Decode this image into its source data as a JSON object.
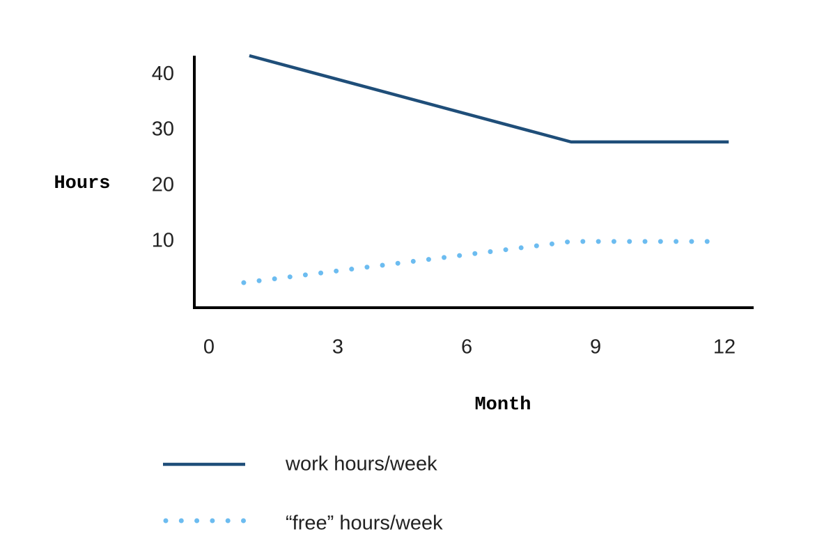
{
  "chart_data": {
    "type": "line",
    "xlabel": "Month",
    "ylabel": "Hours",
    "xlim": [
      -0.34,
      12.68
    ],
    "ylim": [
      -1.9,
      43.4
    ],
    "xticks": [
      0,
      3,
      6,
      9,
      12
    ],
    "yticks": [
      10,
      20,
      30,
      40
    ],
    "grid": false,
    "series": [
      {
        "name": "work hours/week",
        "color": "#1f4e79",
        "style": "solid",
        "x": [
          0.94,
          8.43,
          12.1
        ],
        "values": [
          43.4,
          27.9,
          27.9
        ]
      },
      {
        "name": "“free” hours/week",
        "color": "#6cbcf0",
        "style": "dotted",
        "x": [
          0.81,
          8.43,
          11.8
        ],
        "values": [
          2.6,
          10,
          10
        ]
      }
    ]
  }
}
